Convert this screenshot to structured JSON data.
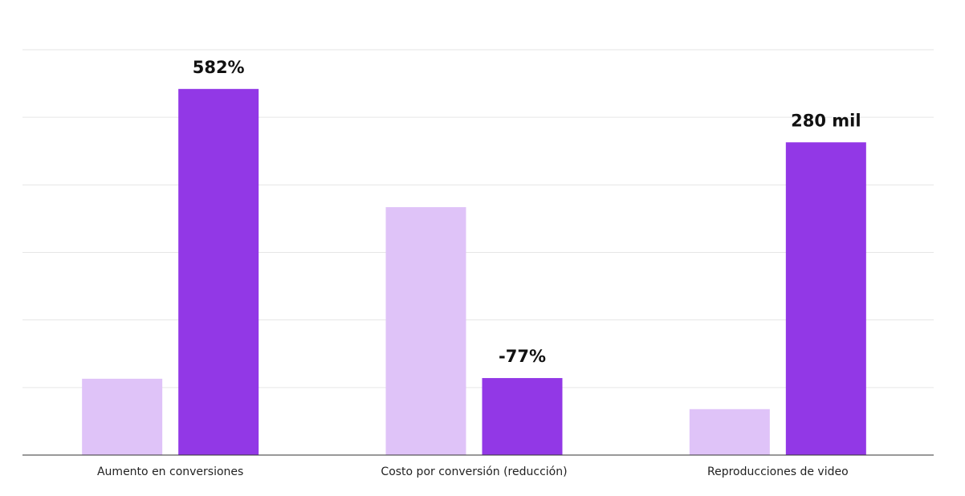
{
  "chart_data": {
    "type": "bar",
    "categories": [
      "Aumento en conversiones",
      "Costo por conversión (reducción)",
      "Reproducciones de video"
    ],
    "series": [
      {
        "color": "#dfc3f8",
        "values": [
          1.13,
          3.67,
          0.68
        ]
      },
      {
        "color": "#9238e6",
        "values": [
          5.42,
          1.14,
          4.63
        ],
        "annotations": [
          "582%",
          "-77%",
          "280 mil"
        ]
      }
    ],
    "ylim": [
      0,
      6
    ],
    "yticks": [
      0,
      1,
      2,
      3,
      4,
      5,
      6
    ],
    "grid": true
  }
}
